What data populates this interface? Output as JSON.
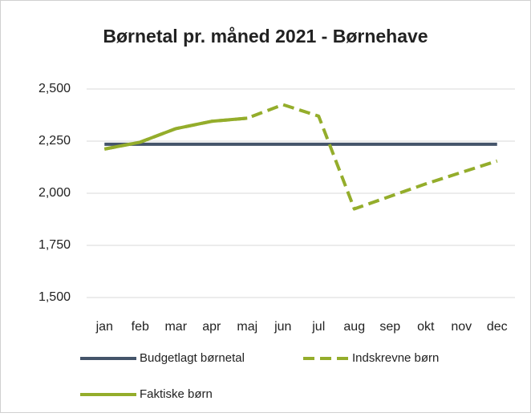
{
  "chart_data": {
    "type": "line",
    "title": "Børnetal pr. måned 2021 - Børnehave",
    "categories": [
      "jan",
      "feb",
      "mar",
      "apr",
      "maj",
      "jun",
      "jul",
      "aug",
      "sep",
      "okt",
      "nov",
      "dec"
    ],
    "series": [
      {
        "name": "Budgetlagt børnetal",
        "color": "#44546a",
        "dash": false,
        "values": [
          2235,
          2235,
          2235,
          2235,
          2235,
          2235,
          2235,
          2235,
          2235,
          2235,
          2235,
          2235
        ]
      },
      {
        "name": "Indskrevne børn",
        "color": "#94ad2b",
        "dash": true,
        "values": [
          2212,
          2245,
          2310,
          2345,
          2360,
          2425,
          2370,
          1925,
          1985,
          2045,
          2100,
          2155
        ]
      },
      {
        "name": "Faktiske børn",
        "color": "#94ad2b",
        "dash": false,
        "values": [
          2212,
          2245,
          2310,
          2345,
          2360,
          null,
          null,
          null,
          null,
          null,
          null,
          null
        ]
      }
    ],
    "ylim": [
      1500,
      2500
    ],
    "yticks": [
      {
        "value": 1500,
        "label": "1,500"
      },
      {
        "value": 1750,
        "label": "1,750"
      },
      {
        "value": 2000,
        "label": "2,000"
      },
      {
        "value": 2250,
        "label": "2,250"
      },
      {
        "value": 2500,
        "label": "2,500"
      }
    ],
    "grid": true,
    "legend": "bottom"
  }
}
